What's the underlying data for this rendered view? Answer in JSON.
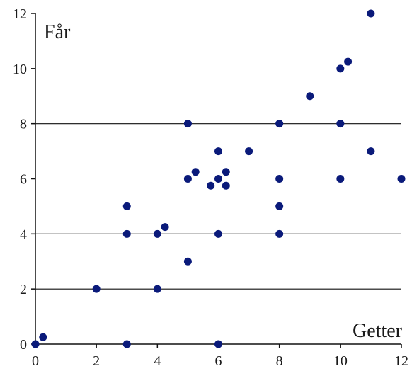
{
  "chart_data": {
    "type": "scatter",
    "xlabel": "Getter",
    "ylabel": "Får",
    "xlim": [
      0,
      12
    ],
    "ylim": [
      0,
      12
    ],
    "x_ticks": [
      0,
      2,
      4,
      6,
      8,
      10,
      12
    ],
    "y_ticks": [
      0,
      2,
      4,
      6,
      8,
      10,
      12
    ],
    "gridlines_y": [
      2,
      4,
      8
    ],
    "grid": "horizontal",
    "point_color": "#0a1a7a",
    "series": [
      {
        "points": [
          [
            0,
            0
          ],
          [
            0.25,
            0.25
          ],
          [
            2,
            2
          ],
          [
            3,
            5
          ],
          [
            3,
            4
          ],
          [
            3,
            0
          ],
          [
            4,
            4
          ],
          [
            4,
            2
          ],
          [
            4.25,
            4.25
          ],
          [
            5,
            8
          ],
          [
            5,
            6
          ],
          [
            5,
            3
          ],
          [
            5.25,
            6.25
          ],
          [
            5.75,
            5.75
          ],
          [
            6,
            7
          ],
          [
            6,
            6
          ],
          [
            6,
            4
          ],
          [
            6,
            0
          ],
          [
            6.25,
            6.25
          ],
          [
            6.25,
            5.75
          ],
          [
            7,
            7
          ],
          [
            8,
            8
          ],
          [
            8,
            6
          ],
          [
            8,
            5
          ],
          [
            8,
            4
          ],
          [
            9,
            9
          ],
          [
            10,
            10
          ],
          [
            10,
            8
          ],
          [
            10,
            6
          ],
          [
            10.25,
            10.25
          ],
          [
            11,
            12
          ],
          [
            11,
            7
          ],
          [
            12,
            6
          ]
        ]
      }
    ]
  }
}
